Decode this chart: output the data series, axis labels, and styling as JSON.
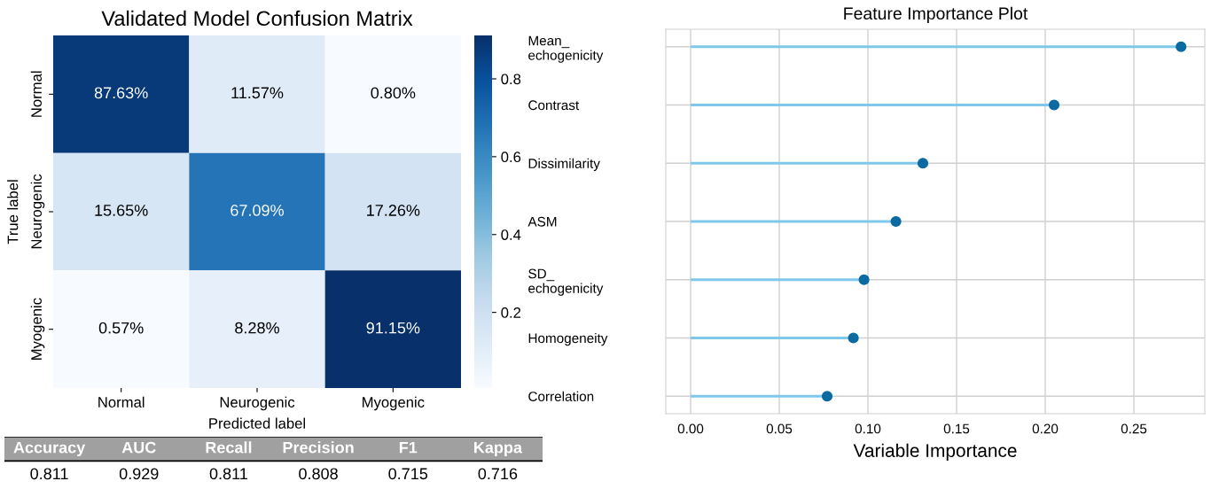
{
  "chart_data": [
    {
      "type": "heatmap",
      "title": "Validated Model Confusion Matrix",
      "xlabel": "Predicted label",
      "ylabel": "True label",
      "categories": [
        "Normal",
        "Neurogenic",
        "Myogenic"
      ],
      "y_categories": [
        "Normal",
        "Neurogenic",
        "Myogenic"
      ],
      "cells": [
        [
          0.8763,
          0.1157,
          0.008
        ],
        [
          0.1565,
          0.6709,
          0.1726
        ],
        [
          0.0057,
          0.0828,
          0.9115
        ]
      ],
      "cell_labels": [
        [
          "87.63%",
          "11.57%",
          "0.80%"
        ],
        [
          "15.65%",
          "67.09%",
          "17.26%"
        ],
        [
          "0.57%",
          "8.28%",
          "91.15%"
        ]
      ],
      "clim": [
        0.0057,
        0.9115
      ],
      "cticks": [
        0.2,
        0.4,
        0.6,
        0.8
      ]
    },
    {
      "type": "other",
      "categories": [
        "Accuracy",
        "AUC",
        "Recall",
        "Precision",
        "F1",
        "Kappa"
      ],
      "values": [
        0.811,
        0.929,
        0.811,
        0.808,
        0.715,
        0.716
      ],
      "data_labels": true
    },
    {
      "type": "lollipop",
      "orientation": "horizontal",
      "title": "Feature Importance Plot",
      "xlabel": "Variable Importance",
      "categories": [
        "Mean_\nechogenicity",
        "Contrast",
        "Dissimilarity",
        "ASM",
        "SD_\nechogenicity",
        "Homogeneity",
        "Correlation"
      ],
      "series": [
        {
          "color": "#0a6aa1",
          "values": [
            0.2766,
            0.205,
            0.131,
            0.1158,
            0.0978,
            0.0918,
            0.077
          ]
        }
      ],
      "xlim": [
        -0.014,
        0.29
      ],
      "xticks": [
        {
          "value": 0,
          "label": "0.00"
        },
        0.05,
        {
          "value": 0.1,
          "label": "0.10"
        },
        0.15,
        {
          "value": 0.2,
          "label": "0.20"
        },
        0.25
      ],
      "grid": true,
      "marker": "circle"
    }
  ]
}
